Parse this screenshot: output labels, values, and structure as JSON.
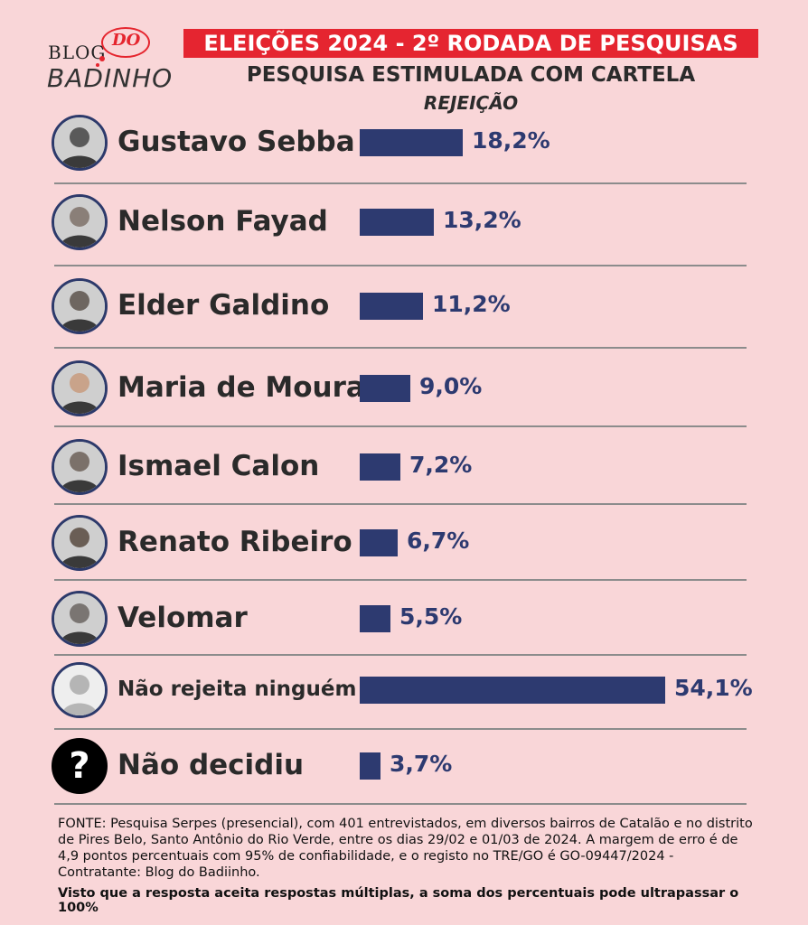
{
  "logo": {
    "blog": "BLOG",
    "do": "DO",
    "badinho": "BADINHO"
  },
  "header": {
    "banner": "ELEIÇÕES 2024 - 2º RODADA DE PESQUISAS",
    "subtitle": "PESQUISA ESTIMULADA  COM CARTELA",
    "section": "REJEIÇÃO"
  },
  "colors": {
    "background": "#f9d6d8",
    "banner": "#e52530",
    "bar": "#2d3a70"
  },
  "chart_data": {
    "type": "bar",
    "title": "REJEIÇÃO",
    "orientation": "horizontal",
    "xlim": [
      0,
      54.1
    ],
    "categories": [
      "Gustavo Sebba",
      "Nelson Fayad",
      "Elder Galdino",
      "Maria de Moura",
      "Ismael Calon",
      "Renato Ribeiro",
      "Velomar",
      "Não rejeita ninguém",
      "Não decidiu"
    ],
    "values": [
      18.2,
      13.2,
      11.2,
      9.0,
      7.2,
      6.7,
      5.5,
      54.1,
      3.7
    ],
    "labels": [
      "18,2%",
      "13,2%",
      "11,2%",
      "9,0%",
      "7,2%",
      "6,7%",
      "5,5%",
      "54,1%",
      "3,7%"
    ]
  },
  "footer": {
    "source": "FONTE: Pesquisa Serpes (presencial), com 401 entrevistados, em diversos bairros de Catalão e no distrito de Pires Belo, Santo Antônio do Rio Verde, entre os dias 29/02 e 01/03 de 2024. A margem de erro é de 4,9 pontos percentuais com 95% de confiabilidade, e o registo no TRE/GO é GO-09447/2024 - Contratante: Blog do Badiinho.",
    "note": "Visto que a resposta aceita respostas múltiplas, a soma dos percentuais pode ultrapassar o 100%"
  }
}
